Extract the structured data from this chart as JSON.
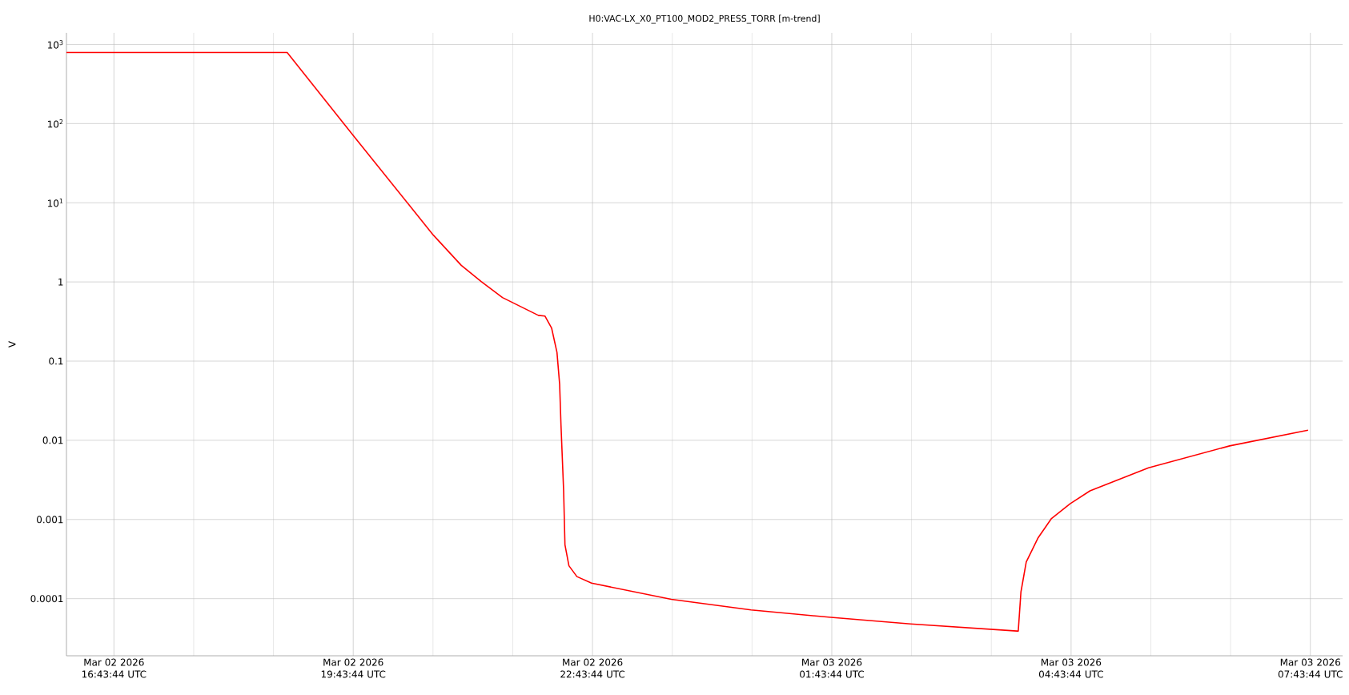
{
  "chart_data": {
    "type": "line",
    "title": "H0:VAC-LX_X0_PT100_MOD2_PRESS_TORR [m-trend]",
    "ylabel": "V",
    "log": true,
    "grid": true,
    "color": "#ff0000",
    "x": [
      "2026-03-02T16:08",
      "2026-03-02T18:54",
      "2026-03-02T19:44",
      "2026-03-02T20:44",
      "2026-03-02T21:05",
      "2026-03-02T21:20",
      "2026-03-02T21:36",
      "2026-03-02T22:03",
      "2026-03-02T22:08",
      "2026-03-02T22:13",
      "2026-03-02T22:17",
      "2026-03-02T22:19",
      "2026-03-02T22:20",
      "2026-03-02T22:22",
      "2026-03-02T22:23",
      "2026-03-02T22:26",
      "2026-03-02T22:32",
      "2026-03-02T22:43",
      "2026-03-02T23:43",
      "2026-03-03T00:43",
      "2026-03-03T01:43",
      "2026-03-03T02:43",
      "2026-03-03T04:03",
      "2026-03-03T04:04",
      "2026-03-03T04:06",
      "2026-03-03T04:10",
      "2026-03-03T04:19",
      "2026-03-03T04:29",
      "2026-03-03T04:43",
      "2026-03-03T04:58",
      "2026-03-03T05:42",
      "2026-03-03T06:43",
      "2026-03-03T07:42"
    ],
    "values": [
      790,
      790,
      70,
      3.9,
      1.62,
      1.01,
      0.635,
      0.378,
      0.37,
      0.26,
      0.129,
      0.051,
      0.0158,
      0.0023,
      0.00048,
      0.00026,
      0.00019,
      0.000157,
      9.8e-05,
      7.2e-05,
      5.8e-05,
      4.8e-05,
      3.9e-05,
      3.9e-05,
      0.000121,
      0.00029,
      0.00059,
      0.00103,
      0.00158,
      0.0023,
      0.0045,
      0.0085,
      0.0134
    ],
    "xlim": [
      "2026-03-02T16:08",
      "2026-03-03T08:08"
    ],
    "ylim": [
      1.9e-05,
      1400
    ],
    "xticks": [
      {
        "value": "2026-03-02T16:43:44",
        "label": "Mar 02 2026 16:43:44 UTC"
      },
      {
        "value": "2026-03-02T17:43:44",
        "label": null
      },
      {
        "value": "2026-03-02T18:43:44",
        "label": null
      },
      {
        "value": "2026-03-02T19:43:44",
        "label": "Mar 02 2026 19:43:44 UTC"
      },
      {
        "value": "2026-03-02T20:43:44",
        "label": null
      },
      {
        "value": "2026-03-02T21:43:44",
        "label": null
      },
      {
        "value": "2026-03-02T22:43:44",
        "label": "Mar 02 2026 22:43:44 UTC"
      },
      {
        "value": "2026-03-02T23:43:44",
        "label": null
      },
      {
        "value": "2026-03-03T00:43:44",
        "label": null
      },
      {
        "value": "2026-03-03T01:43:44",
        "label": "Mar 03 2026 01:43:44 UTC"
      },
      {
        "value": "2026-03-03T02:43:44",
        "label": null
      },
      {
        "value": "2026-03-03T03:43:44",
        "label": null
      },
      {
        "value": "2026-03-03T04:43:44",
        "label": "Mar 03 2026 04:43:44 UTC"
      },
      {
        "value": "2026-03-03T05:43:44",
        "label": null
      },
      {
        "value": "2026-03-03T06:43:44",
        "label": null
      },
      {
        "value": "2026-03-03T07:43:44",
        "label": "Mar 03 2026 07:43:44 UTC"
      }
    ],
    "yticks": [
      0.0001,
      0.001,
      0.01,
      0.1,
      1,
      {
        "value": 10,
        "label": "10$^{1}$"
      },
      {
        "value": 100,
        "label": "10$^{2}$"
      },
      {
        "value": 1000,
        "label": "10$^{3}$"
      }
    ]
  }
}
